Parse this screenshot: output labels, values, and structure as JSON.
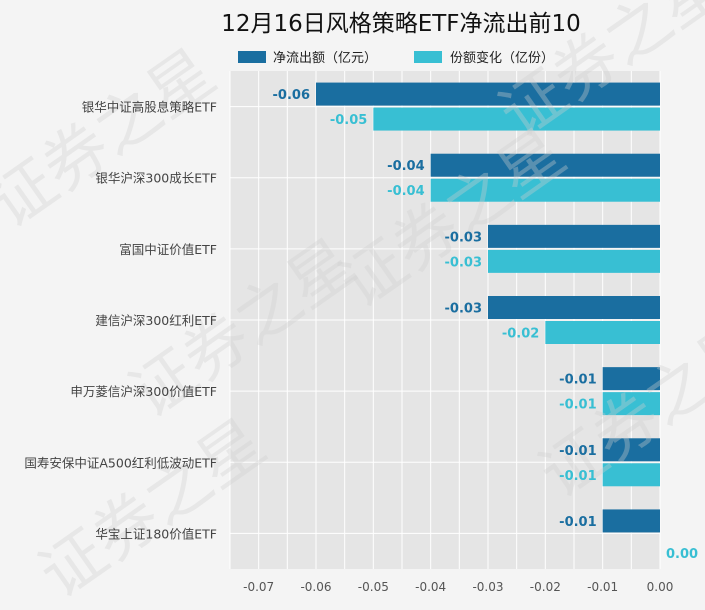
{
  "chart_data": {
    "type": "bar",
    "orientation": "horizontal",
    "title": "12月16日风格策略ETF净流出前10",
    "categories": [
      "银华中证高股息策略ETF",
      "银华沪深300成长ETF",
      "富国中证价值ETF",
      "建信沪深300红利ETF",
      "申万菱信沪深300价值ETF",
      "国寿安保中证A500红利低波动ETF",
      "华宝上证180价值ETF"
    ],
    "series": [
      {
        "name": "净流出额（亿元）",
        "color": "#1a6ea0",
        "values": [
          -0.06,
          -0.04,
          -0.03,
          -0.03,
          -0.01,
          -0.01,
          -0.01
        ],
        "labels": [
          "-0.06",
          "-0.04",
          "-0.03",
          "-0.03",
          "-0.01",
          "-0.01",
          "-0.01"
        ]
      },
      {
        "name": "份额变化（亿份）",
        "color": "#38bfd3",
        "values": [
          -0.05,
          -0.04,
          -0.03,
          -0.02,
          -0.01,
          -0.01,
          0.0
        ],
        "labels": [
          "-0.05",
          "-0.04",
          "-0.03",
          "-0.02",
          "-0.01",
          "-0.01",
          "0.00"
        ]
      }
    ],
    "xlim": [
      -0.075,
      0.0
    ],
    "xticks": [
      -0.07,
      -0.06,
      -0.05,
      -0.04,
      -0.03,
      -0.02,
      -0.01,
      0.0
    ],
    "xtick_labels": [
      "-0.07",
      "-0.06",
      "-0.05",
      "-0.04",
      "-0.03",
      "-0.02",
      "-0.01",
      "0.00"
    ],
    "grid": true,
    "legend_position": "top"
  },
  "watermark": {
    "text": "证券之星"
  }
}
